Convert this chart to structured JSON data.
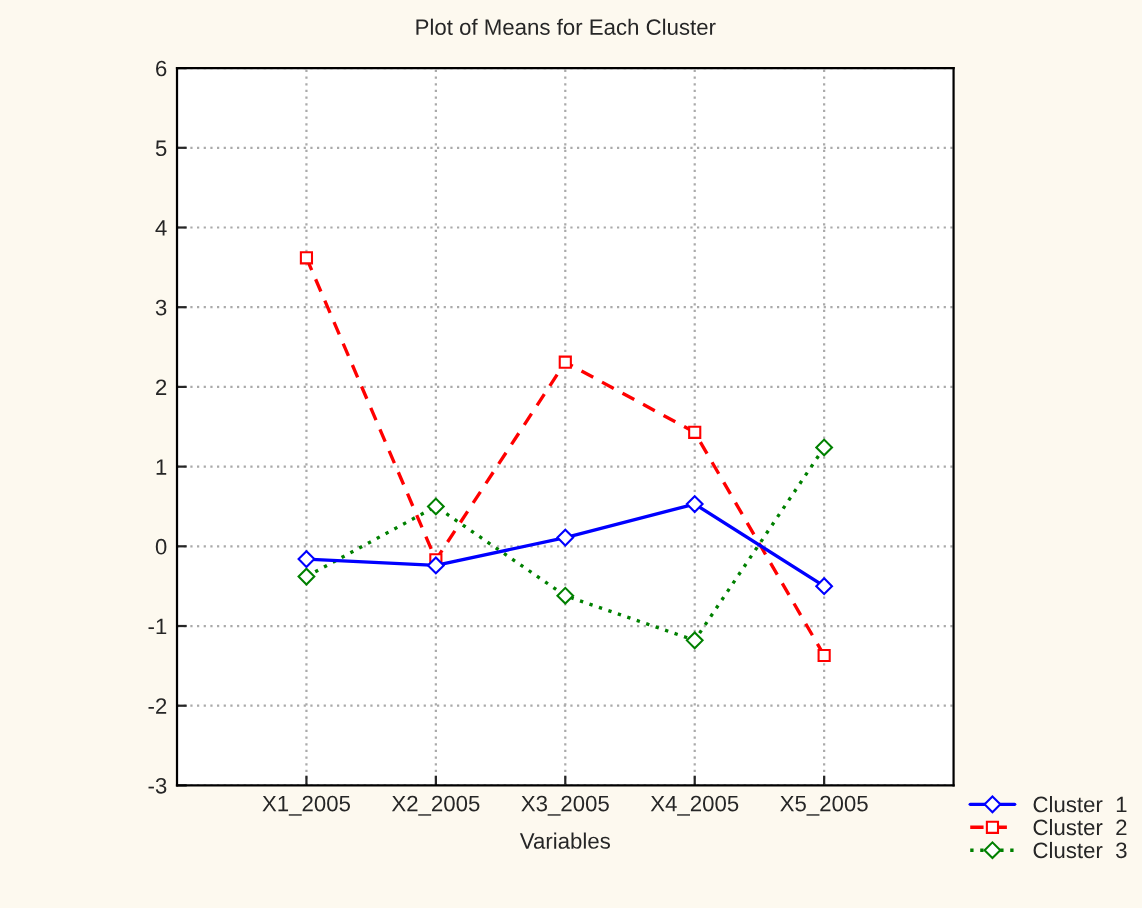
{
  "chart_data": {
    "type": "line",
    "title": "Plot of Means for Each Cluster",
    "xlabel": "Variables",
    "categories": [
      "X1_2005",
      "X2_2005",
      "X3_2005",
      "X4_2005",
      "X5_2005"
    ],
    "series": [
      {
        "name": "Cluster  1",
        "color": "#0000ff",
        "values": [
          -0.16,
          -0.24,
          0.11,
          0.53,
          -0.5
        ],
        "marker": "diamond",
        "line_style": "solid"
      },
      {
        "name": "Cluster  2",
        "color": "#ff0000",
        "values": [
          3.62,
          -0.17,
          2.31,
          1.43,
          -1.37
        ],
        "marker": "square",
        "line_style": "dashed"
      },
      {
        "name": "Cluster  3",
        "color": "#008000",
        "values": [
          -0.38,
          0.5,
          -0.62,
          -1.18,
          1.24
        ],
        "marker": "diamond",
        "line_style": "dotted"
      }
    ],
    "ylim": [
      -3,
      6
    ],
    "yticks": [
      -3,
      -2,
      -1,
      0,
      1,
      2,
      3,
      4,
      5,
      6
    ],
    "grid": true,
    "legend": "bottom right"
  }
}
